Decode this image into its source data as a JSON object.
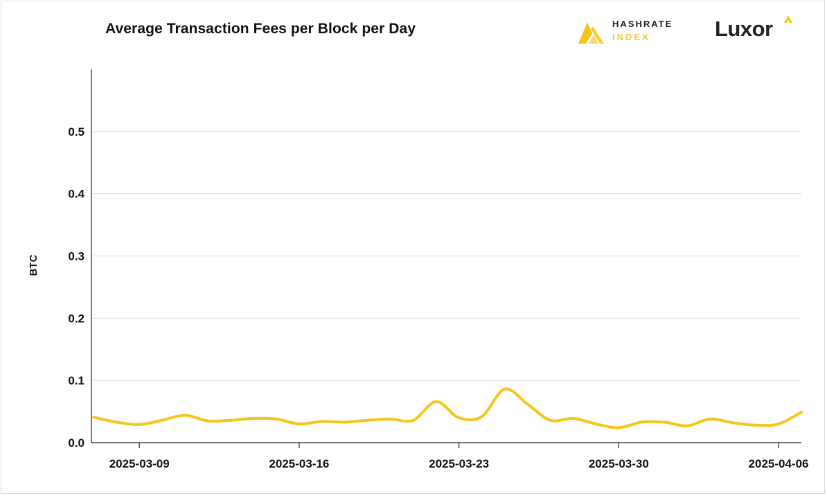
{
  "brand": {
    "hashrate_line1": "HASHRATE",
    "hashrate_line2": "INDEX",
    "luxor": "Luxor",
    "accent_color": "#f5c518",
    "text_color": "#222222"
  },
  "chart_data": {
    "type": "line",
    "title": "Average Transaction Fees per Block per Day",
    "ylabel": "BTC",
    "xlabel": "",
    "ylim": [
      0,
      0.6
    ],
    "yticks": [
      0.0,
      0.1,
      0.2,
      0.3,
      0.4,
      0.5
    ],
    "ytick_labels": [
      "0.0",
      "0.1",
      "0.2",
      "0.3",
      "0.4",
      "0.5"
    ],
    "xticks": [
      "2025-03-09",
      "2025-03-16",
      "2025-03-23",
      "2025-03-30",
      "2025-04-06"
    ],
    "grid": true,
    "series": [
      {
        "color": "#f5c518",
        "x": [
          "2025-03-07",
          "2025-03-08",
          "2025-03-09",
          "2025-03-10",
          "2025-03-11",
          "2025-03-12",
          "2025-03-13",
          "2025-03-14",
          "2025-03-15",
          "2025-03-16",
          "2025-03-17",
          "2025-03-18",
          "2025-03-19",
          "2025-03-20",
          "2025-03-21",
          "2025-03-22",
          "2025-03-23",
          "2025-03-24",
          "2025-03-25",
          "2025-03-26",
          "2025-03-27",
          "2025-03-28",
          "2025-03-29",
          "2025-03-30",
          "2025-03-31",
          "2025-04-01",
          "2025-04-02",
          "2025-04-03",
          "2025-04-04",
          "2025-04-05",
          "2025-04-06",
          "2025-04-07"
        ],
        "values": [
          0.041,
          0.033,
          0.029,
          0.036,
          0.044,
          0.035,
          0.036,
          0.039,
          0.038,
          0.03,
          0.034,
          0.033,
          0.036,
          0.038,
          0.036,
          0.066,
          0.04,
          0.042,
          0.086,
          0.062,
          0.036,
          0.039,
          0.03,
          0.024,
          0.033,
          0.033,
          0.027,
          0.038,
          0.032,
          0.028,
          0.03,
          0.049
        ]
      }
    ]
  }
}
